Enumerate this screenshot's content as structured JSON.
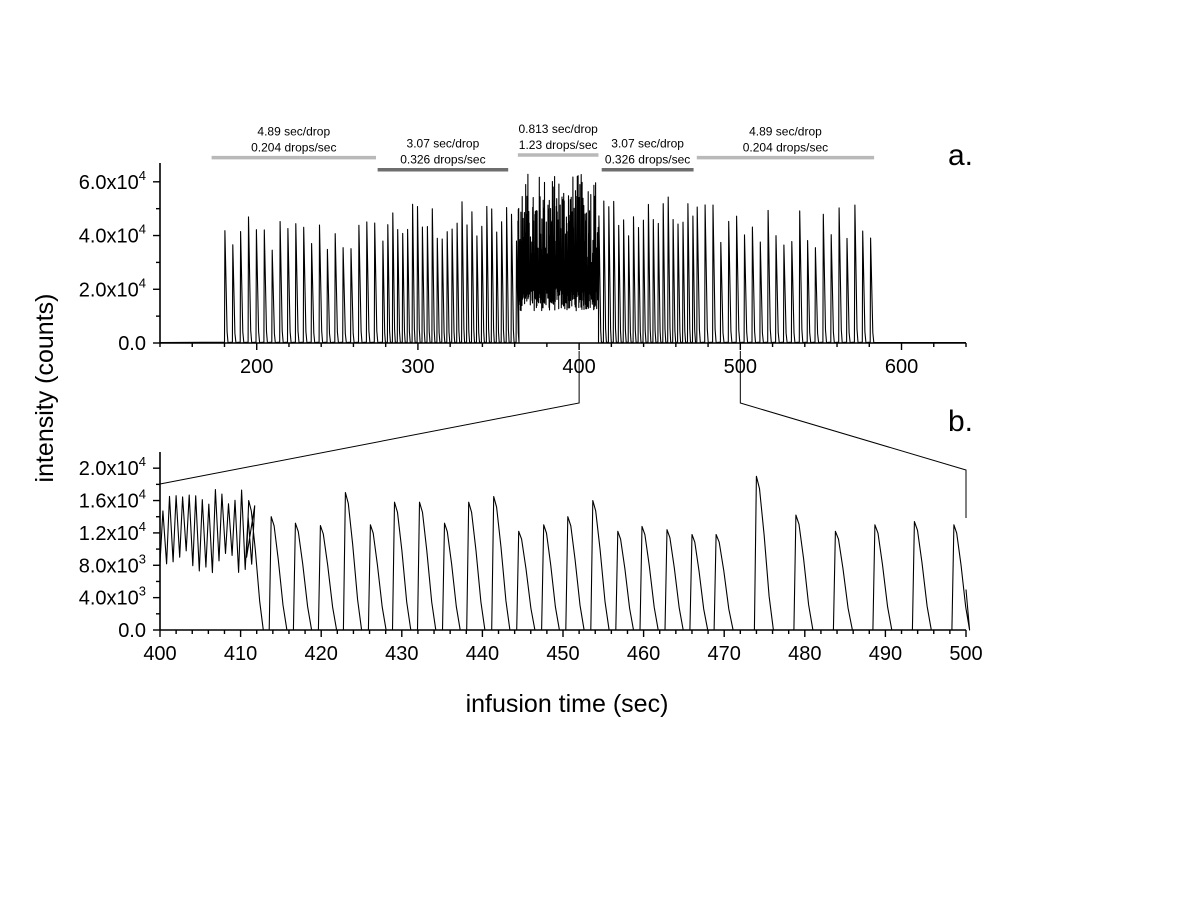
{
  "chart_data": [
    {
      "panel": "a.",
      "type": "line",
      "xlim": [
        140,
        640
      ],
      "ylim": [
        0,
        67000
      ],
      "x_ticks": [
        200,
        300,
        400,
        500,
        600
      ],
      "y_ticks": [
        {
          "value": 0,
          "mant": "0.0",
          "exp": ""
        },
        {
          "value": 20000,
          "mant": "2.0x10",
          "exp": "4"
        },
        {
          "value": 40000,
          "mant": "4.0x10",
          "exp": "4"
        },
        {
          "value": 60000,
          "mant": "6.0x10",
          "exp": "4"
        }
      ],
      "trace": {
        "regions": [
          {
            "start": 180,
            "end": 278,
            "period": 4.89,
            "mode": "peaks"
          },
          {
            "start": 278,
            "end": 362,
            "period": 3.07,
            "mode": "peaks"
          },
          {
            "start": 362,
            "end": 412,
            "period": 0.813,
            "mode": "dense"
          },
          {
            "start": 412,
            "end": 473,
            "period": 3.07,
            "mode": "peaks"
          },
          {
            "start": 473,
            "end": 585,
            "period": 4.89,
            "mode": "peaks"
          }
        ],
        "approx_peak_max": [
          47000,
          53000,
          63000,
          55000,
          52000
        ]
      },
      "rate_segments": [
        {
          "x0": 172,
          "x1": 274,
          "y": 69000,
          "color": "#b9b9b9",
          "line1": "4.89 sec/drop",
          "line2": "0.204 drops/sec"
        },
        {
          "x0": 275,
          "x1": 356,
          "y": 64500,
          "color": "#6e6e6e",
          "line1": "3.07 sec/drop",
          "line2": "0.326 drops/sec"
        },
        {
          "x0": 362,
          "x1": 412,
          "y": 70000,
          "color": "#b9b9b9",
          "line1": "0.813 sec/drop",
          "line2": "1.23 drops/sec"
        },
        {
          "x0": 414,
          "x1": 471,
          "y": 64500,
          "color": "#6e6e6e",
          "line1": "3.07 sec/drop",
          "line2": "0.326 drops/sec"
        },
        {
          "x0": 473,
          "x1": 583,
          "y": 69000,
          "color": "#b9b9b9",
          "line1": "4.89 sec/drop",
          "line2": "0.204 drops/sec"
        }
      ]
    },
    {
      "panel": "b.",
      "type": "line",
      "xlim": [
        400,
        500
      ],
      "ylim": [
        0,
        22000
      ],
      "x_ticks": [
        400,
        410,
        420,
        430,
        440,
        450,
        460,
        470,
        480,
        490,
        500
      ],
      "y_ticks": [
        {
          "value": 0,
          "mant": "0.0",
          "exp": ""
        },
        {
          "value": 4000,
          "mant": "4.0x10",
          "exp": "3"
        },
        {
          "value": 8000,
          "mant": "8.0x10",
          "exp": "3"
        },
        {
          "value": 12000,
          "mant": "1.2x10",
          "exp": "4"
        },
        {
          "value": 16000,
          "mant": "1.6x10",
          "exp": "4"
        },
        {
          "value": 20000,
          "mant": "2.0x10",
          "exp": "4"
        }
      ],
      "dense_region": {
        "start": 400,
        "end": 411.5,
        "period": 0.813
      },
      "peaks": [
        {
          "x": 411.0,
          "y": 16000
        },
        {
          "x": 413.8,
          "y": 14000
        },
        {
          "x": 416.8,
          "y": 13200
        },
        {
          "x": 419.9,
          "y": 12900
        },
        {
          "x": 423.0,
          "y": 17000
        },
        {
          "x": 426.1,
          "y": 13000
        },
        {
          "x": 429.1,
          "y": 15800
        },
        {
          "x": 432.2,
          "y": 15800
        },
        {
          "x": 435.3,
          "y": 13200
        },
        {
          "x": 438.3,
          "y": 15800
        },
        {
          "x": 441.4,
          "y": 16500
        },
        {
          "x": 444.5,
          "y": 12200
        },
        {
          "x": 447.6,
          "y": 13000
        },
        {
          "x": 450.6,
          "y": 14000
        },
        {
          "x": 453.7,
          "y": 16000
        },
        {
          "x": 456.8,
          "y": 12200
        },
        {
          "x": 459.8,
          "y": 12800
        },
        {
          "x": 462.9,
          "y": 12400
        },
        {
          "x": 466.0,
          "y": 11800
        },
        {
          "x": 469.0,
          "y": 11800
        },
        {
          "x": 474.0,
          "y": 19000
        },
        {
          "x": 478.9,
          "y": 14200
        },
        {
          "x": 483.8,
          "y": 12200
        },
        {
          "x": 488.7,
          "y": 13000
        },
        {
          "x": 493.6,
          "y": 13400
        },
        {
          "x": 498.5,
          "y": 13000
        }
      ]
    }
  ],
  "labels": {
    "y_axis": "intensity (counts)",
    "x_axis": "infusion time (sec)",
    "panel_a": "a.",
    "panel_b": "b."
  },
  "zoom_lines": {
    "from_x": [
      400,
      500
    ],
    "to_x": [
      400,
      500
    ]
  }
}
